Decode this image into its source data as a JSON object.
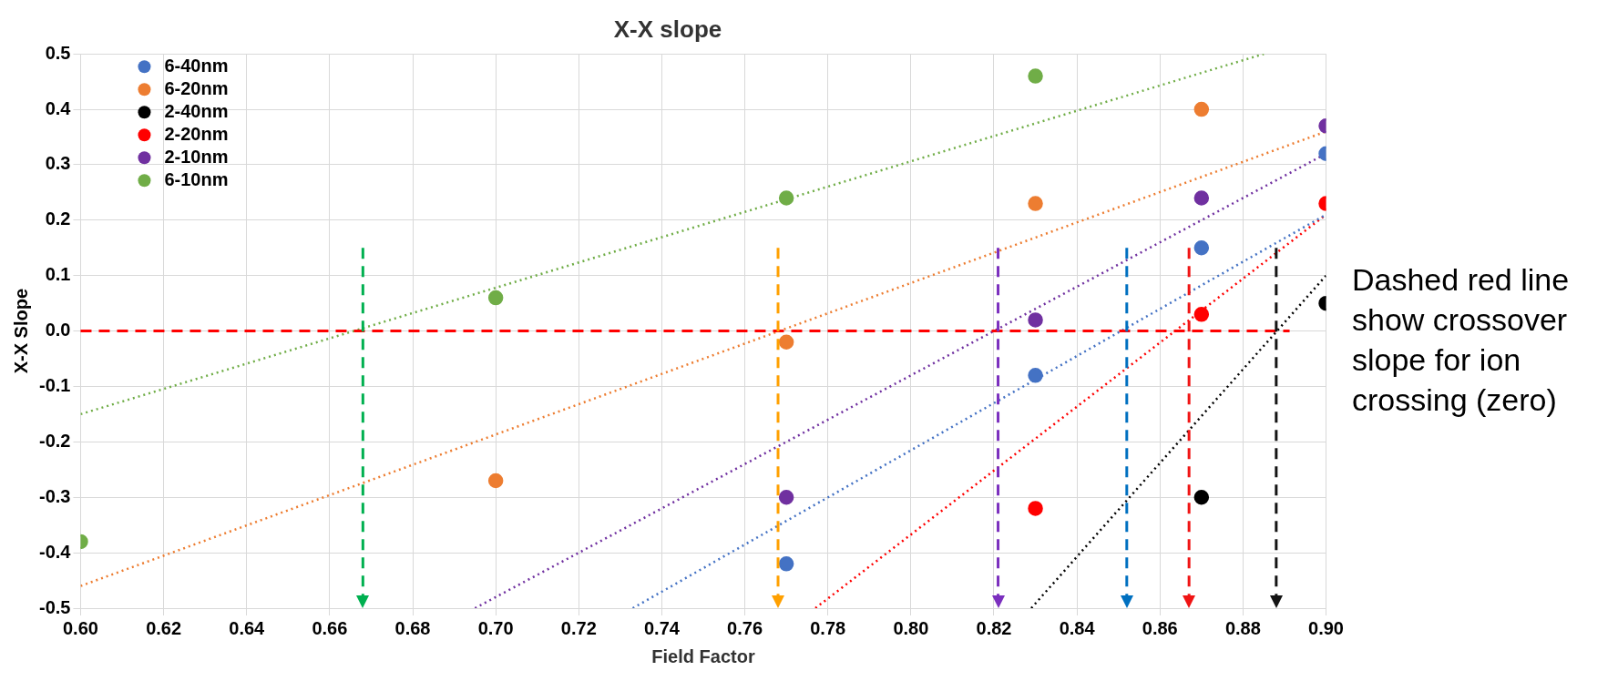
{
  "chart_data": {
    "type": "scatter",
    "title": "X-X slope",
    "xlabel": "Field Factor",
    "ylabel": "X-X Slope",
    "xlim": [
      0.6,
      0.9
    ],
    "xticks": [
      {
        "value": 0.6,
        "label": "0.60"
      },
      0.62,
      0.64,
      0.66,
      0.68,
      {
        "value": 0.7,
        "label": "0.70"
      },
      0.72,
      0.74,
      0.76,
      0.78,
      {
        "value": 0.8,
        "label": "0.80"
      },
      0.82,
      0.84,
      0.86,
      0.88,
      {
        "value": 0.9,
        "label": "0.90"
      }
    ],
    "ylim": [
      -0.5,
      0.5
    ],
    "yticks": [
      -0.5,
      -0.4,
      -0.3,
      -0.2,
      -0.1,
      {
        "value": 0,
        "label": "0.0"
      },
      0.1,
      0.2,
      0.3,
      0.4,
      0.5
    ],
    "grid": true,
    "legend": "top left",
    "marker": "circle",
    "series": [
      {
        "name": "6-40nm",
        "color": "#4472c4",
        "x": [
          0.77,
          0.83,
          0.87,
          0.9
        ],
        "values": [
          -0.42,
          -0.08,
          0.15,
          0.32
        ]
      },
      {
        "name": "6-20nm",
        "color": "#ed7d31",
        "x": [
          0.7,
          0.77,
          0.83,
          0.87
        ],
        "values": [
          -0.27,
          -0.02,
          0.23,
          0.4
        ]
      },
      {
        "name": "2-40nm",
        "color": "#000000",
        "x": [
          0.87,
          0.9
        ],
        "values": [
          -0.3,
          0.05
        ]
      },
      {
        "name": "2-20nm",
        "color": "#ff0000",
        "x": [
          0.83,
          0.87,
          0.9
        ],
        "values": [
          -0.32,
          0.03,
          0.23
        ]
      },
      {
        "name": "2-10nm",
        "color": "#7030a0",
        "x": [
          0.77,
          0.83,
          0.87,
          0.9
        ],
        "values": [
          -0.3,
          0.02,
          0.24,
          0.37
        ]
      },
      {
        "name": "6-10nm",
        "color": "#70ad47",
        "x": [
          0.6,
          0.7,
          0.77,
          0.83
        ],
        "values": [
          -0.38,
          0.06,
          0.24,
          0.46
        ]
      },
      {
        "type": "line",
        "color": "#4472c4",
        "line_style": "dotted",
        "marker": "none",
        "x": [
          0.733,
          0.9
        ],
        "values": [
          -0.5,
          0.21
        ]
      },
      {
        "type": "line",
        "color": "#ed7d31",
        "line_style": "dotted",
        "marker": "none",
        "x": [
          0.6,
          0.9
        ],
        "values": [
          -0.46,
          0.36
        ]
      },
      {
        "type": "line",
        "color": "#000000",
        "line_style": "dotted",
        "marker": "none",
        "x": [
          0.829,
          0.9
        ],
        "values": [
          -0.5,
          0.1
        ]
      },
      {
        "type": "line",
        "color": "#ff0000",
        "line_style": "dotted",
        "marker": "none",
        "x": [
          0.777,
          0.9
        ],
        "values": [
          -0.5,
          0.21
        ]
      },
      {
        "type": "line",
        "color": "#7030a0",
        "line_style": "dotted",
        "marker": "none",
        "x": [
          0.695,
          0.9
        ],
        "values": [
          -0.5,
          0.32
        ]
      },
      {
        "type": "line",
        "color": "#70ad47",
        "line_style": "dotted",
        "marker": "none",
        "x": [
          0.6,
          0.885
        ],
        "values": [
          -0.15,
          0.5
        ]
      }
    ],
    "ref_lines": [
      {
        "axis": "y",
        "value": 0,
        "color": "#ff0000",
        "line_style": "dashed"
      },
      {
        "axis": "x",
        "value": 0.668,
        "color": "#00b050",
        "line_style": "dashed"
      },
      {
        "axis": "x",
        "value": 0.768,
        "color": "#ffa000",
        "line_style": "dashed"
      },
      {
        "axis": "x",
        "value": 0.821,
        "color": "#7b2fbe",
        "line_style": "dashed"
      },
      {
        "axis": "x",
        "value": 0.852,
        "color": "#0070c0",
        "line_style": "dashed"
      },
      {
        "axis": "x",
        "value": 0.867,
        "color": "#f01414",
        "line_style": "dashed"
      },
      {
        "axis": "x",
        "value": 0.888,
        "color": "#141414",
        "line_style": "dashed"
      }
    ],
    "annotations": [
      "Dashed red line show crossover slope for ion crossing (zero)"
    ]
  }
}
